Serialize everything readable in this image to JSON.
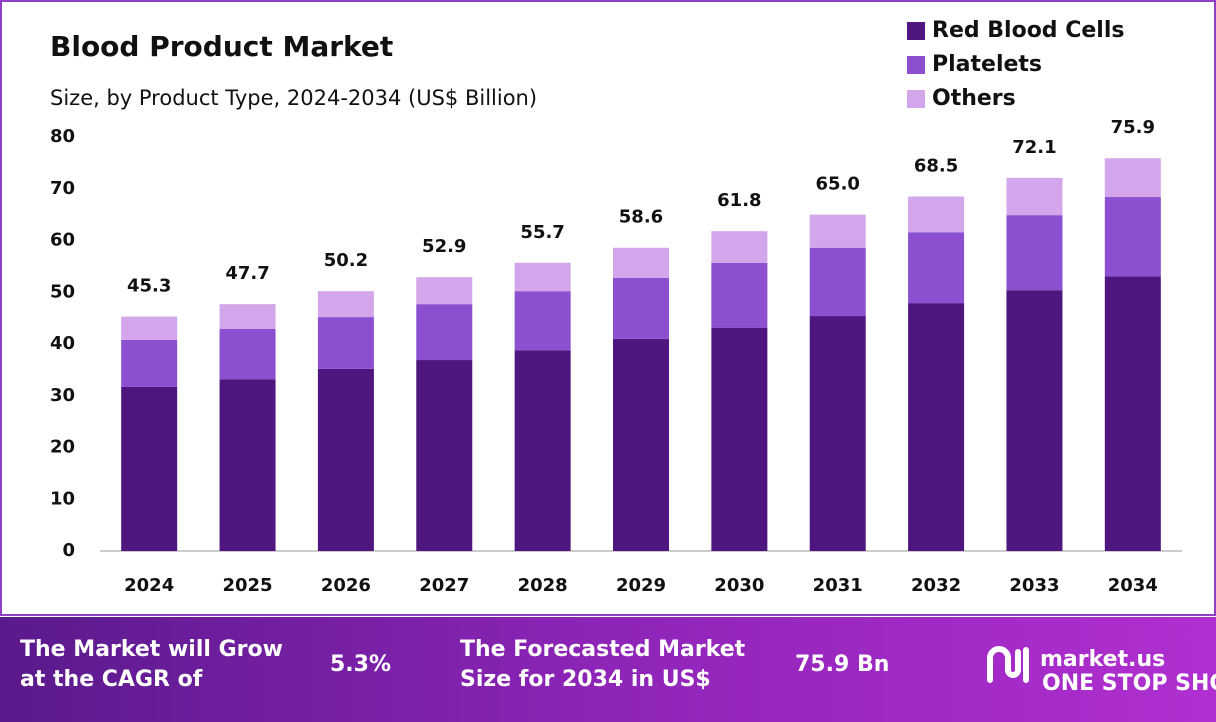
{
  "chart_data": {
    "type": "stacked_bar",
    "title": "Blood Product Market",
    "subtitle": "Size, by Product Type, 2024-2034 (US$ Billion)",
    "categories": [
      "2024",
      "2025",
      "2026",
      "2027",
      "2028",
      "2029",
      "2030",
      "2031",
      "2032",
      "2033",
      "2034"
    ],
    "series": [
      {
        "name": "Red Blood Cells",
        "color": "#4f1680",
        "values": [
          31.7,
          33.2,
          35.2,
          36.9,
          38.8,
          41.0,
          43.1,
          45.4,
          47.9,
          50.4,
          53.1
        ]
      },
      {
        "name": "Platelets",
        "color": "#8b4fd0",
        "values": [
          9.1,
          9.7,
          10.0,
          10.8,
          11.4,
          11.8,
          12.6,
          13.2,
          13.7,
          14.5,
          15.3
        ]
      },
      {
        "name": "Others",
        "color": "#d3a6ec",
        "values": [
          4.5,
          4.8,
          5.0,
          5.2,
          5.5,
          5.8,
          6.1,
          6.4,
          6.9,
          7.2,
          7.5
        ]
      }
    ],
    "totals": {
      "values": [
        45.3,
        47.7,
        50.2,
        52.9,
        55.7,
        58.6,
        61.8,
        65.0,
        68.5,
        72.1,
        75.9
      ],
      "value_labels": [
        "45.3",
        "47.7",
        "50.2",
        "52.9",
        "55.7",
        "58.6",
        "61.8",
        "65.0",
        "68.5",
        "72.1",
        "75.9"
      ]
    },
    "ylim": [
      0,
      80
    ],
    "yticks": [
      0,
      10,
      20,
      30,
      40,
      50,
      60,
      70,
      80
    ],
    "grid": false,
    "legend": "top-right"
  },
  "footer": {
    "cagr_text": [
      "The Market will Grow",
      "at the CAGR of"
    ],
    "cagr_value": "5.3%",
    "forecast_text": [
      "The Forecasted Market",
      "Size for 2034 in US$"
    ],
    "forecast_value": "75.9 Bn",
    "brand": "market.us",
    "tagline": "ONE STOP SHOP FOR THE REPORTS"
  }
}
